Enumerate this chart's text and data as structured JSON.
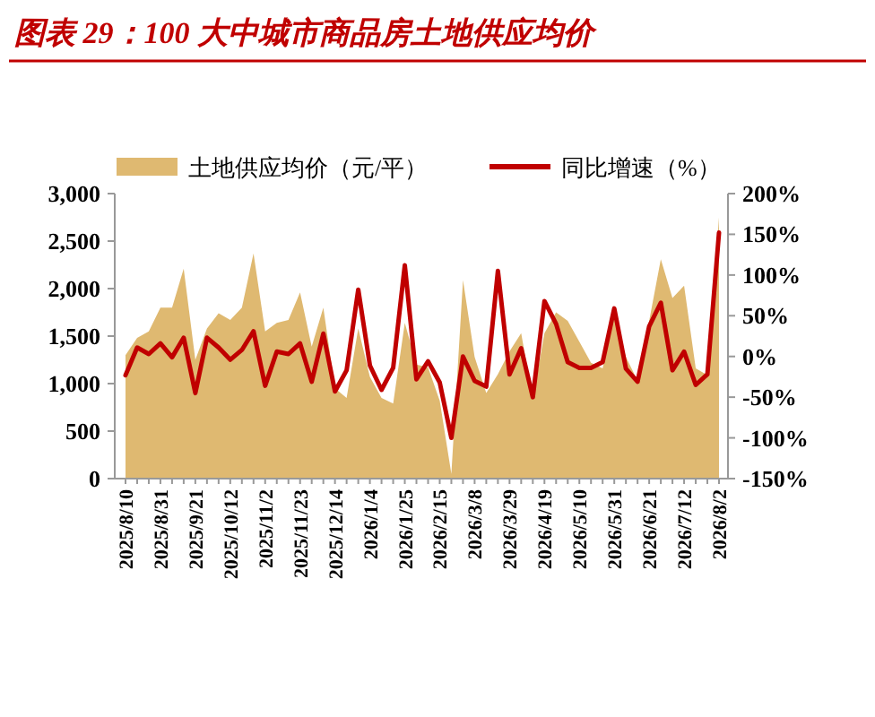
{
  "chart_data": {
    "type": "area",
    "title": "图表 29：100 大中城市商品房土地供应均价",
    "categories": [
      "2025/8/10",
      null,
      null,
      "2025/8/31",
      null,
      null,
      "2025/9/21",
      null,
      null,
      "2025/10/12",
      null,
      null,
      "2025/11/2",
      null,
      null,
      "2025/11/23",
      null,
      null,
      "2025/12/14",
      null,
      null,
      "2026/1/4",
      null,
      null,
      "2026/1/25",
      null,
      null,
      "2026/2/15",
      null,
      null,
      "2026/3/8",
      null,
      null,
      "2026/3/29",
      null,
      null,
      "2026/4/19",
      null,
      null,
      "2026/5/10",
      null,
      null,
      "2026/5/31",
      null,
      null,
      "2026/6/21",
      null,
      null,
      "2026/7/12",
      null,
      null,
      "2026/8/2"
    ],
    "series": [
      {
        "name": "土地供应均价（元/平）",
        "color": "#dfb971",
        "values": [
          1300,
          1480,
          1550,
          1800,
          1800,
          2210,
          1250,
          1580,
          1740,
          1670,
          1800,
          2370,
          1550,
          1640,
          1670,
          1960,
          1390,
          1800,
          950,
          850,
          1580,
          1070,
          850,
          790,
          1640,
          1200,
          1170,
          820,
          50,
          2090,
          1280,
          900,
          1100,
          1340,
          1530,
          840,
          1530,
          1750,
          1660,
          1440,
          1220,
          1160,
          1720,
          1280,
          1030,
          1660,
          2310,
          1900,
          2030,
          1160,
          1090,
          2750
        ]
      },
      {
        "name": "同比增速（%）",
        "type": "line",
        "axis": "y2",
        "color": "#c00000",
        "values": [
          -23,
          11,
          3,
          16,
          -1,
          23,
          -45,
          23,
          11,
          -4,
          8,
          31,
          -36,
          6,
          3,
          16,
          -31,
          28,
          -43,
          -17,
          82,
          -11,
          -41,
          -14,
          112,
          -28,
          -6,
          -32,
          -100,
          0,
          -30,
          -37,
          105,
          -22,
          10,
          -50,
          68,
          40,
          -7,
          -14,
          -14,
          -7,
          59,
          -15,
          -31,
          37,
          66,
          -17,
          6,
          -35,
          -22,
          152
        ]
      }
    ],
    "ylim": [
      0,
      3000
    ],
    "yticks": [
      0,
      500,
      {
        "value": 1000,
        "label": "1,000"
      },
      {
        "value": 1500,
        "label": "1,500"
      },
      {
        "value": 2000,
        "label": "2,000"
      },
      {
        "value": 2500,
        "label": "2,500"
      },
      {
        "value": 3000,
        "label": "3,000"
      }
    ],
    "y2lim": [
      -150,
      200
    ],
    "y2ticks": [
      {
        "value": -150,
        "label": "-150%"
      },
      {
        "value": -100,
        "label": "-100%"
      },
      {
        "value": -50,
        "label": "-50%"
      },
      {
        "value": 0,
        "label": "0%"
      },
      {
        "value": 50,
        "label": "50%"
      },
      {
        "value": 100,
        "label": "100%"
      },
      {
        "value": 150,
        "label": "150%"
      },
      {
        "value": 200,
        "label": "200%"
      }
    ],
    "legend": "top",
    "grid": false
  }
}
